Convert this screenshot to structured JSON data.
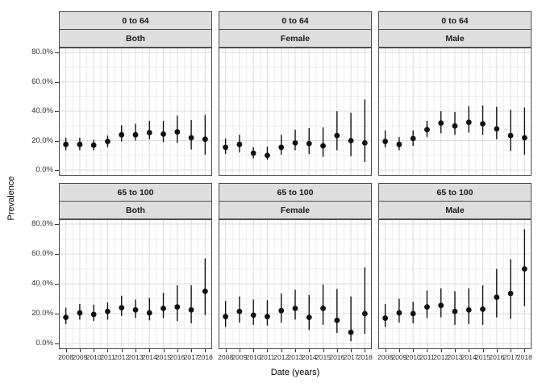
{
  "figure": {
    "y_axis_title": "Prevalence",
    "x_axis_title": "Date (years)",
    "y_tick_labels": [
      "80.0%",
      "60.0%",
      "40.0%",
      "20.0%",
      "0.0%"
    ],
    "x_tick_labels": [
      "2008",
      "2009",
      "2010",
      "2011",
      "2012",
      "2013",
      "2014",
      "2015",
      "2016",
      "2017",
      "2018"
    ],
    "colors": {
      "strip_background": "#dedede",
      "panel_border": "#4d4d4d",
      "grid_major": "#dcdcdc",
      "grid_minor": "#ededed",
      "point": "#111111",
      "tick": "#333333"
    }
  },
  "chart_data": [
    {
      "type": "scatter",
      "row_label": "0 to 64",
      "col_label": "Both",
      "x": [
        2008,
        2009,
        2010,
        2011,
        2012,
        2013,
        2014,
        2015,
        2016,
        2017,
        2018
      ],
      "values": [
        17.5,
        17.5,
        17,
        19.5,
        24,
        24,
        25.5,
        24.5,
        26,
        22,
        21
      ],
      "ci_low": [
        13.5,
        13.5,
        13.5,
        15.5,
        19.5,
        20,
        21,
        19,
        18.5,
        14,
        10.5
      ],
      "ci_high": [
        22,
        22,
        20.5,
        23.5,
        30.5,
        31.5,
        33.5,
        33.5,
        37,
        34,
        37.5
      ],
      "xlabel": "Date (years)",
      "ylabel": "Prevalence",
      "ylim": [
        0,
        87
      ],
      "grid": true
    },
    {
      "type": "scatter",
      "row_label": "0 to 64",
      "col_label": "Female",
      "x": [
        2008,
        2009,
        2010,
        2011,
        2012,
        2013,
        2014,
        2015,
        2016,
        2017,
        2018
      ],
      "values": [
        15.5,
        17.5,
        11.5,
        10,
        15.5,
        18.5,
        18,
        16.5,
        23.5,
        20,
        18.5
      ],
      "ci_low": [
        11,
        12,
        8,
        7,
        10.5,
        13.5,
        11,
        9,
        13.5,
        9.5,
        5.5
      ],
      "ci_high": [
        21.5,
        24,
        15.5,
        16,
        24,
        27.5,
        28.5,
        29,
        40,
        39,
        48
      ],
      "xlabel": "Date (years)",
      "ylabel": "Prevalence",
      "ylim": [
        0,
        87
      ],
      "grid": true
    },
    {
      "type": "scatter",
      "row_label": "0 to 64",
      "col_label": "Male",
      "x": [
        2008,
        2009,
        2010,
        2011,
        2012,
        2013,
        2014,
        2015,
        2016,
        2017,
        2018
      ],
      "values": [
        19.5,
        17.5,
        21.5,
        27.5,
        32,
        30,
        32.5,
        31.5,
        28,
        23.5,
        22
      ],
      "ci_low": [
        15.5,
        13.5,
        16.5,
        22.5,
        25,
        24,
        25.5,
        24,
        21,
        13,
        10.5
      ],
      "ci_high": [
        27,
        22.5,
        27,
        33.5,
        40,
        39.5,
        43.5,
        44,
        43,
        41,
        42.5
      ],
      "xlabel": "Date (years)",
      "ylabel": "Prevalence",
      "ylim": [
        0,
        87
      ],
      "grid": true
    },
    {
      "type": "scatter",
      "row_label": "65 to 100",
      "col_label": "Both",
      "x": [
        2008,
        2009,
        2010,
        2011,
        2012,
        2013,
        2014,
        2015,
        2016,
        2017,
        2018
      ],
      "values": [
        17.5,
        20.5,
        19.5,
        21.5,
        24,
        22.5,
        20.5,
        23.5,
        24.5,
        22.5,
        35
      ],
      "ci_low": [
        13,
        16,
        15,
        16,
        18.5,
        17,
        15.5,
        17,
        15,
        13.5,
        19
      ],
      "ci_high": [
        24,
        26.5,
        26,
        27.5,
        32,
        29.5,
        30.5,
        34,
        39,
        39,
        57
      ],
      "xlabel": "Date (years)",
      "ylabel": "Prevalence",
      "ylim": [
        0,
        87
      ],
      "grid": true
    },
    {
      "type": "scatter",
      "row_label": "65 to 100",
      "col_label": "Female",
      "x": [
        2008,
        2009,
        2010,
        2011,
        2012,
        2013,
        2014,
        2015,
        2016,
        2017,
        2018
      ],
      "values": [
        18,
        21.5,
        19,
        18,
        22,
        23.5,
        17.5,
        23.5,
        15.5,
        7.5,
        20
      ],
      "ci_low": [
        11,
        14,
        12.5,
        12,
        14,
        16,
        9,
        12.5,
        7,
        1.5,
        6.5
      ],
      "ci_high": [
        28.5,
        31.5,
        29.5,
        29,
        33.5,
        36,
        32.5,
        39.5,
        36.5,
        31.5,
        51
      ],
      "xlabel": "Date (years)",
      "ylabel": "Prevalence",
      "ylim": [
        0,
        87
      ],
      "grid": true
    },
    {
      "type": "scatter",
      "row_label": "65 to 100",
      "col_label": "Male",
      "x": [
        2008,
        2009,
        2010,
        2011,
        2012,
        2013,
        2014,
        2015,
        2016,
        2017,
        2018
      ],
      "values": [
        17,
        20.5,
        20,
        24.5,
        25.5,
        21.5,
        22.5,
        23,
        31,
        33.5,
        50
      ],
      "ci_low": [
        11,
        14,
        13.5,
        17,
        17.5,
        12.5,
        13,
        12.5,
        17.5,
        16.5,
        25
      ],
      "ci_high": [
        26.5,
        30,
        28,
        35.5,
        37,
        35,
        37,
        39,
        50,
        56.5,
        76.5
      ],
      "xlabel": "Date (years)",
      "ylabel": "Prevalence",
      "ylim": [
        0,
        87
      ],
      "grid": true
    }
  ]
}
